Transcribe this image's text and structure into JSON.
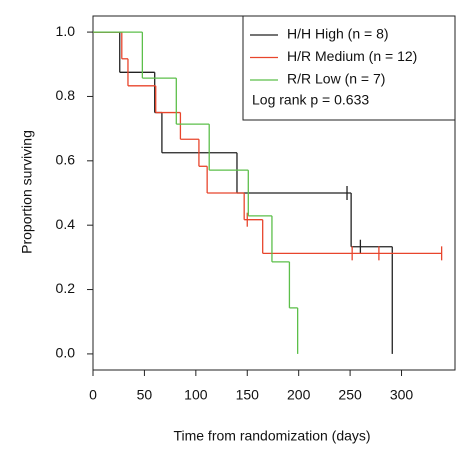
{
  "chart_data": {
    "type": "step",
    "x_label": "Time from randomization (days)",
    "y_label": "Proportion surviving",
    "annotation": "Log rank p = 0.633",
    "xlim": [
      0,
      352
    ],
    "ylim": [
      -0.05,
      1.05
    ],
    "xticks": [
      0,
      50,
      100,
      150,
      200,
      250,
      300
    ],
    "yticks": [
      {
        "value": 0,
        "label": "0.0"
      },
      0.2,
      0.4,
      0.6,
      0.8,
      {
        "value": 1,
        "label": "1.0"
      }
    ],
    "series": [
      {
        "name": "H/H High (n = 8)",
        "color": "#222222",
        "x": [
          0,
          26,
          60,
          67,
          140,
          251,
          291
        ],
        "values": [
          1,
          0.875,
          0.75,
          0.625,
          0.5,
          0.333,
          0
        ],
        "censored_x": [
          247,
          260
        ],
        "censored_values": [
          0.5,
          0.333
        ]
      },
      {
        "name": "H/R Medium (n = 12)",
        "color": "#e8452c",
        "x": [
          0,
          28,
          34,
          61,
          85,
          103,
          111,
          147,
          165
        ],
        "values": [
          1,
          0.917,
          0.833,
          0.75,
          0.667,
          0.583,
          0.5,
          0.417,
          0.3125
        ],
        "censored_x": [
          150,
          252,
          278,
          339
        ],
        "censored_values": [
          0.417,
          0.3125,
          0.3125,
          0.3125
        ]
      },
      {
        "name": "R/R Low (n = 7)",
        "color": "#5cbf4a",
        "x": [
          0,
          48,
          81,
          113,
          151,
          174,
          191,
          199
        ],
        "values": [
          1,
          0.857,
          0.714,
          0.571,
          0.429,
          0.286,
          0.143,
          0
        ],
        "censored_x": [],
        "censored_values": []
      }
    ]
  }
}
